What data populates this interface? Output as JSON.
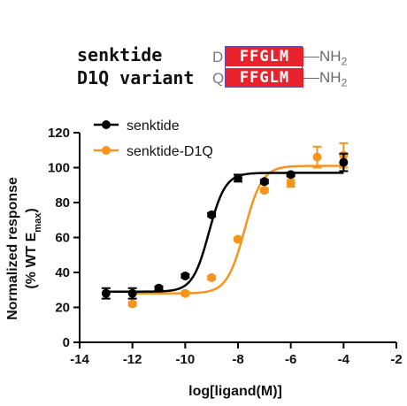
{
  "sequences": {
    "row1": {
      "name": "senktide",
      "first_residue": "D",
      "core": "FFGLM",
      "cterm": "NH",
      "cterm_sub": "2"
    },
    "row2": {
      "name": "D1Q variant",
      "first_residue": "Q",
      "core": "FFGLM",
      "cterm": "NH",
      "cterm_sub": "2"
    }
  },
  "chart_data": {
    "type": "scatter",
    "xlabel": "log[ligand(M)]",
    "ylabel_line1": "Normalized response",
    "ylabel_line2_prefix": "(% WT E",
    "ylabel_line2_sub": "max",
    "ylabel_line2_suffix": ")",
    "xlim": [
      -14,
      -2
    ],
    "ylim": [
      0,
      120
    ],
    "xticks": [
      -14,
      -12,
      -10,
      -8,
      -6,
      -4,
      -2
    ],
    "yticks": [
      0,
      20,
      40,
      60,
      80,
      100,
      120
    ],
    "legend_position": "top-left",
    "series": [
      {
        "name": "senktide",
        "color": "#000000",
        "x": [
          -13,
          -12,
          -11,
          -10,
          -9,
          -8,
          -7,
          -6,
          -4
        ],
        "y": [
          28,
          28,
          31,
          38,
          73,
          94,
          92,
          96,
          103
        ],
        "err": [
          3,
          3,
          1,
          1,
          1,
          2,
          1,
          1,
          5
        ],
        "fit": {
          "bottom": 29,
          "top": 97,
          "log_ec50": -9.1,
          "hill": 1.4
        }
      },
      {
        "name": "senktide-D1Q",
        "color": "#f7941d",
        "x": [
          -12,
          -10,
          -9,
          -8,
          -7,
          -6,
          -5,
          -4
        ],
        "y": [
          22,
          28,
          37,
          59,
          87,
          91,
          106,
          107
        ],
        "err": [
          1,
          1,
          1,
          1,
          1,
          2,
          6,
          7
        ],
        "fit": {
          "bottom": 28,
          "top": 101,
          "log_ec50": -7.75,
          "hill": 1.3
        }
      }
    ]
  }
}
